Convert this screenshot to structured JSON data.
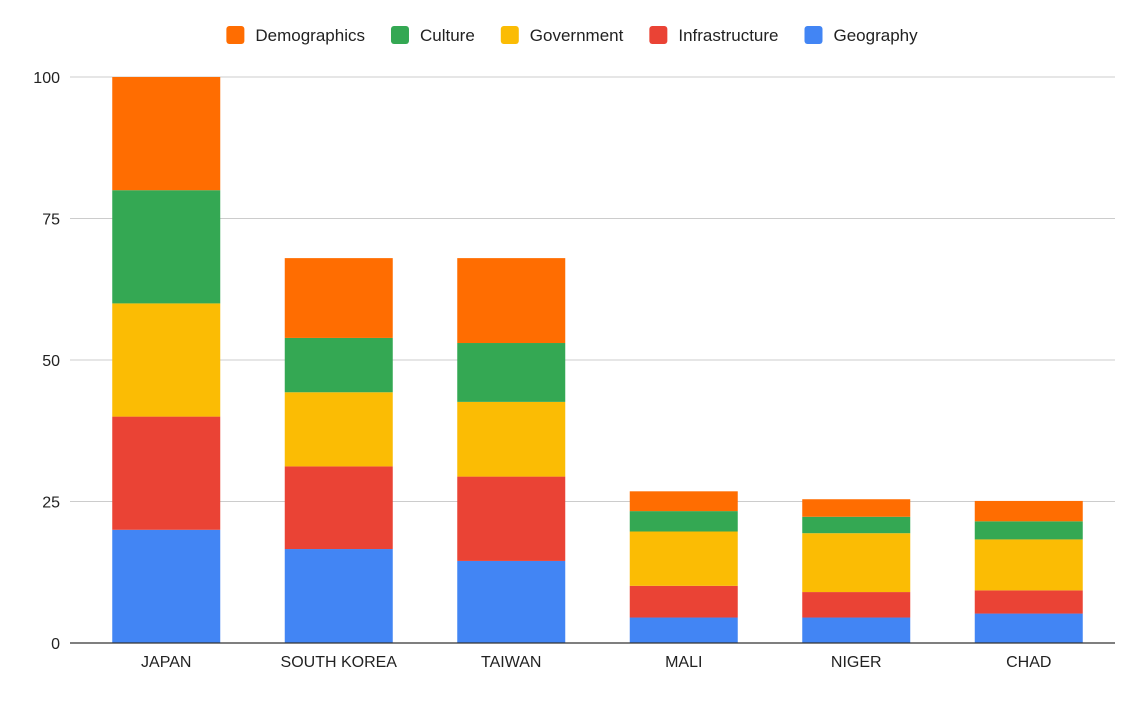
{
  "chart_data": {
    "type": "bar",
    "stacked": true,
    "title": "",
    "xlabel": "",
    "ylabel": "",
    "categories": [
      "JAPAN",
      "SOUTH KOREA",
      "TAIWAN",
      "MALI",
      "NIGER",
      "CHAD"
    ],
    "series": [
      {
        "name": "Geography",
        "color": "#4285F4",
        "values": [
          20,
          16.6,
          14.5,
          4.5,
          4.5,
          5.2
        ]
      },
      {
        "name": "Infrastructure",
        "color": "#EA4335",
        "values": [
          20,
          14.6,
          14.9,
          5.6,
          4.5,
          4.1
        ]
      },
      {
        "name": "Government",
        "color": "#FBBC04",
        "values": [
          20,
          13.1,
          13.2,
          9.6,
          10.4,
          9.0
        ]
      },
      {
        "name": "Culture",
        "color": "#34A853",
        "values": [
          20,
          9.6,
          10.4,
          3.6,
          2.9,
          3.2
        ]
      },
      {
        "name": "Demographics",
        "color": "#FF6D01",
        "values": [
          20,
          14.1,
          15.0,
          3.5,
          3.1,
          3.6
        ]
      }
    ],
    "legend_order": [
      "Demographics",
      "Culture",
      "Government",
      "Infrastructure",
      "Geography"
    ],
    "legend_position": "top",
    "ylim": [
      0,
      100
    ],
    "yticks": [
      0,
      25,
      50,
      75,
      100
    ],
    "grid": true
  }
}
